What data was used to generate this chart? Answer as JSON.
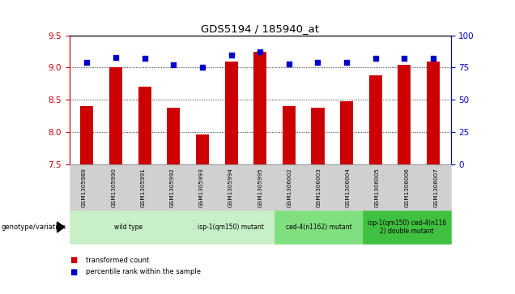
{
  "title": "GDS5194 / 185940_at",
  "samples": [
    "GSM1305989",
    "GSM1305990",
    "GSM1305991",
    "GSM1305992",
    "GSM1305993",
    "GSM1305994",
    "GSM1305995",
    "GSM1306002",
    "GSM1306003",
    "GSM1306004",
    "GSM1306005",
    "GSM1306006",
    "GSM1306007"
  ],
  "red_values": [
    8.4,
    9.0,
    8.7,
    8.38,
    7.97,
    9.09,
    9.25,
    8.4,
    8.38,
    8.48,
    8.88,
    9.04,
    9.1
  ],
  "blue_values": [
    79,
    83,
    82,
    77,
    75,
    85,
    87,
    78,
    79,
    79,
    82,
    82,
    82
  ],
  "ylim_left": [
    7.5,
    9.5
  ],
  "ylim_right": [
    0,
    100
  ],
  "yticks_left": [
    7.5,
    8.0,
    8.5,
    9.0,
    9.5
  ],
  "yticks_right": [
    0,
    25,
    50,
    75,
    100
  ],
  "grid_values": [
    8.0,
    8.5,
    9.0
  ],
  "groups": [
    {
      "label": "wild type",
      "indices": [
        0,
        1,
        2,
        3
      ],
      "color": "#c8f0c8"
    },
    {
      "label": "isp-1(qm150) mutant",
      "indices": [
        4,
        5,
        6
      ],
      "color": "#c8f0c8"
    },
    {
      "label": "ced-4(n1162) mutant",
      "indices": [
        7,
        8,
        9
      ],
      "color": "#80e080"
    },
    {
      "label": "isp-1(qm150) ced-4(n116\n2) double mutant",
      "indices": [
        10,
        11,
        12
      ],
      "color": "#40c040"
    }
  ],
  "bar_color": "#cc0000",
  "dot_color": "#0000cc",
  "bar_width": 0.45,
  "bg_color": "#d0d0d0",
  "plot_bg": "#ffffff",
  "fig_width": 6.36,
  "fig_height": 3.63,
  "dpi": 100
}
